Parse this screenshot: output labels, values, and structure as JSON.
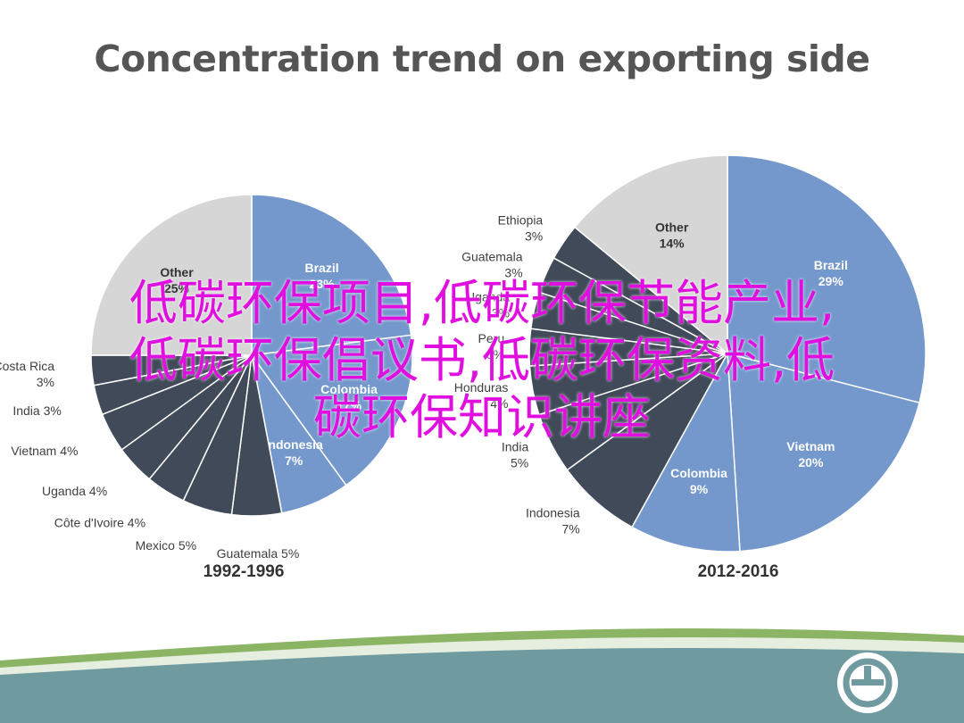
{
  "slide_title": "Concentration trend on exporting side",
  "overlay_text": [
    "低碳环保项目,低碳环保节能产业,",
    "低碳环保倡议书,低碳环保资料,低",
    "碳环保知识讲座"
  ],
  "colors": {
    "brazil": "#7498cc",
    "other": "#d6d6d6",
    "dark_slice": "#414a59",
    "slice_stroke": "#ffffff",
    "title": "#555555",
    "overlay": "#e00fe0",
    "footer_green": "#8bb565",
    "footer_teal": "#6f9aa0"
  },
  "logo_icon": "circle-logo-icon",
  "chart_data": [
    {
      "type": "pie",
      "title": "1992-1996",
      "slices": [
        {
          "name": "Brazil",
          "label": "Brazil",
          "value": 23,
          "value_label": "23%",
          "highlight": "brazil"
        },
        {
          "name": "Colombia",
          "label": "Colombia",
          "value": 17,
          "value_label": "17%",
          "highlight": "brazil"
        },
        {
          "name": "Indonesia",
          "label": "Indonesia",
          "value": 7,
          "value_label": "7%",
          "highlight": "brazil"
        },
        {
          "name": "Guatemala",
          "label": "Guatemala 5%",
          "value": 5,
          "highlight": "dark"
        },
        {
          "name": "Mexico",
          "label": "Mexico 5%",
          "value": 5,
          "highlight": "dark"
        },
        {
          "name": "Côte d'Ivoire",
          "label": "Côte d'Ivoire 4%",
          "value": 4,
          "highlight": "dark"
        },
        {
          "name": "Uganda",
          "label": "Uganda 4%",
          "value": 4,
          "highlight": "dark"
        },
        {
          "name": "Vietnam",
          "label": "Vietnam 4%",
          "value": 4,
          "highlight": "dark"
        },
        {
          "name": "India",
          "label": "India 3%",
          "value": 3,
          "highlight": "dark"
        },
        {
          "name": "Costa Rica",
          "label": "Costa Rica",
          "value": 3,
          "value_label": "3%",
          "highlight": "dark"
        },
        {
          "name": "Other",
          "label": "Other",
          "value": 25,
          "value_label": "25%",
          "highlight": "other"
        }
      ]
    },
    {
      "type": "pie",
      "title": "2012-2016",
      "slices": [
        {
          "name": "Brazil",
          "label": "Brazil",
          "value": 29,
          "value_label": "29%",
          "highlight": "brazil"
        },
        {
          "name": "Vietnam",
          "label": "Vietnam",
          "value": 20,
          "value_label": "20%",
          "highlight": "brazil"
        },
        {
          "name": "Colombia",
          "label": "Colombia",
          "value": 9,
          "value_label": "9%",
          "highlight": "brazil"
        },
        {
          "name": "Indonesia",
          "label": "Indonesia",
          "value": 7,
          "value_label": "7%",
          "highlight": "dark"
        },
        {
          "name": "India",
          "label": "India",
          "value": 5,
          "value_label": "5%",
          "highlight": "dark"
        },
        {
          "name": "Honduras",
          "label": "Honduras",
          "value": 4,
          "value_label": "4%",
          "highlight": "dark"
        },
        {
          "name": "Peru",
          "label": "Peru",
          "value": 3,
          "value_label": "3%",
          "highlight": "dark"
        },
        {
          "name": "Uganda",
          "label": "Uganda",
          "value": 3,
          "value_label": "3%",
          "highlight": "dark"
        },
        {
          "name": "Guatemala",
          "label": "Guatemala",
          "value": 3,
          "value_label": "3%",
          "highlight": "dark"
        },
        {
          "name": "Ethiopia",
          "label": "Ethiopia",
          "value": 3,
          "value_label": "3%",
          "highlight": "dark"
        },
        {
          "name": "Other",
          "label": "Other",
          "value": 14,
          "value_label": "14%",
          "highlight": "other"
        }
      ]
    }
  ]
}
